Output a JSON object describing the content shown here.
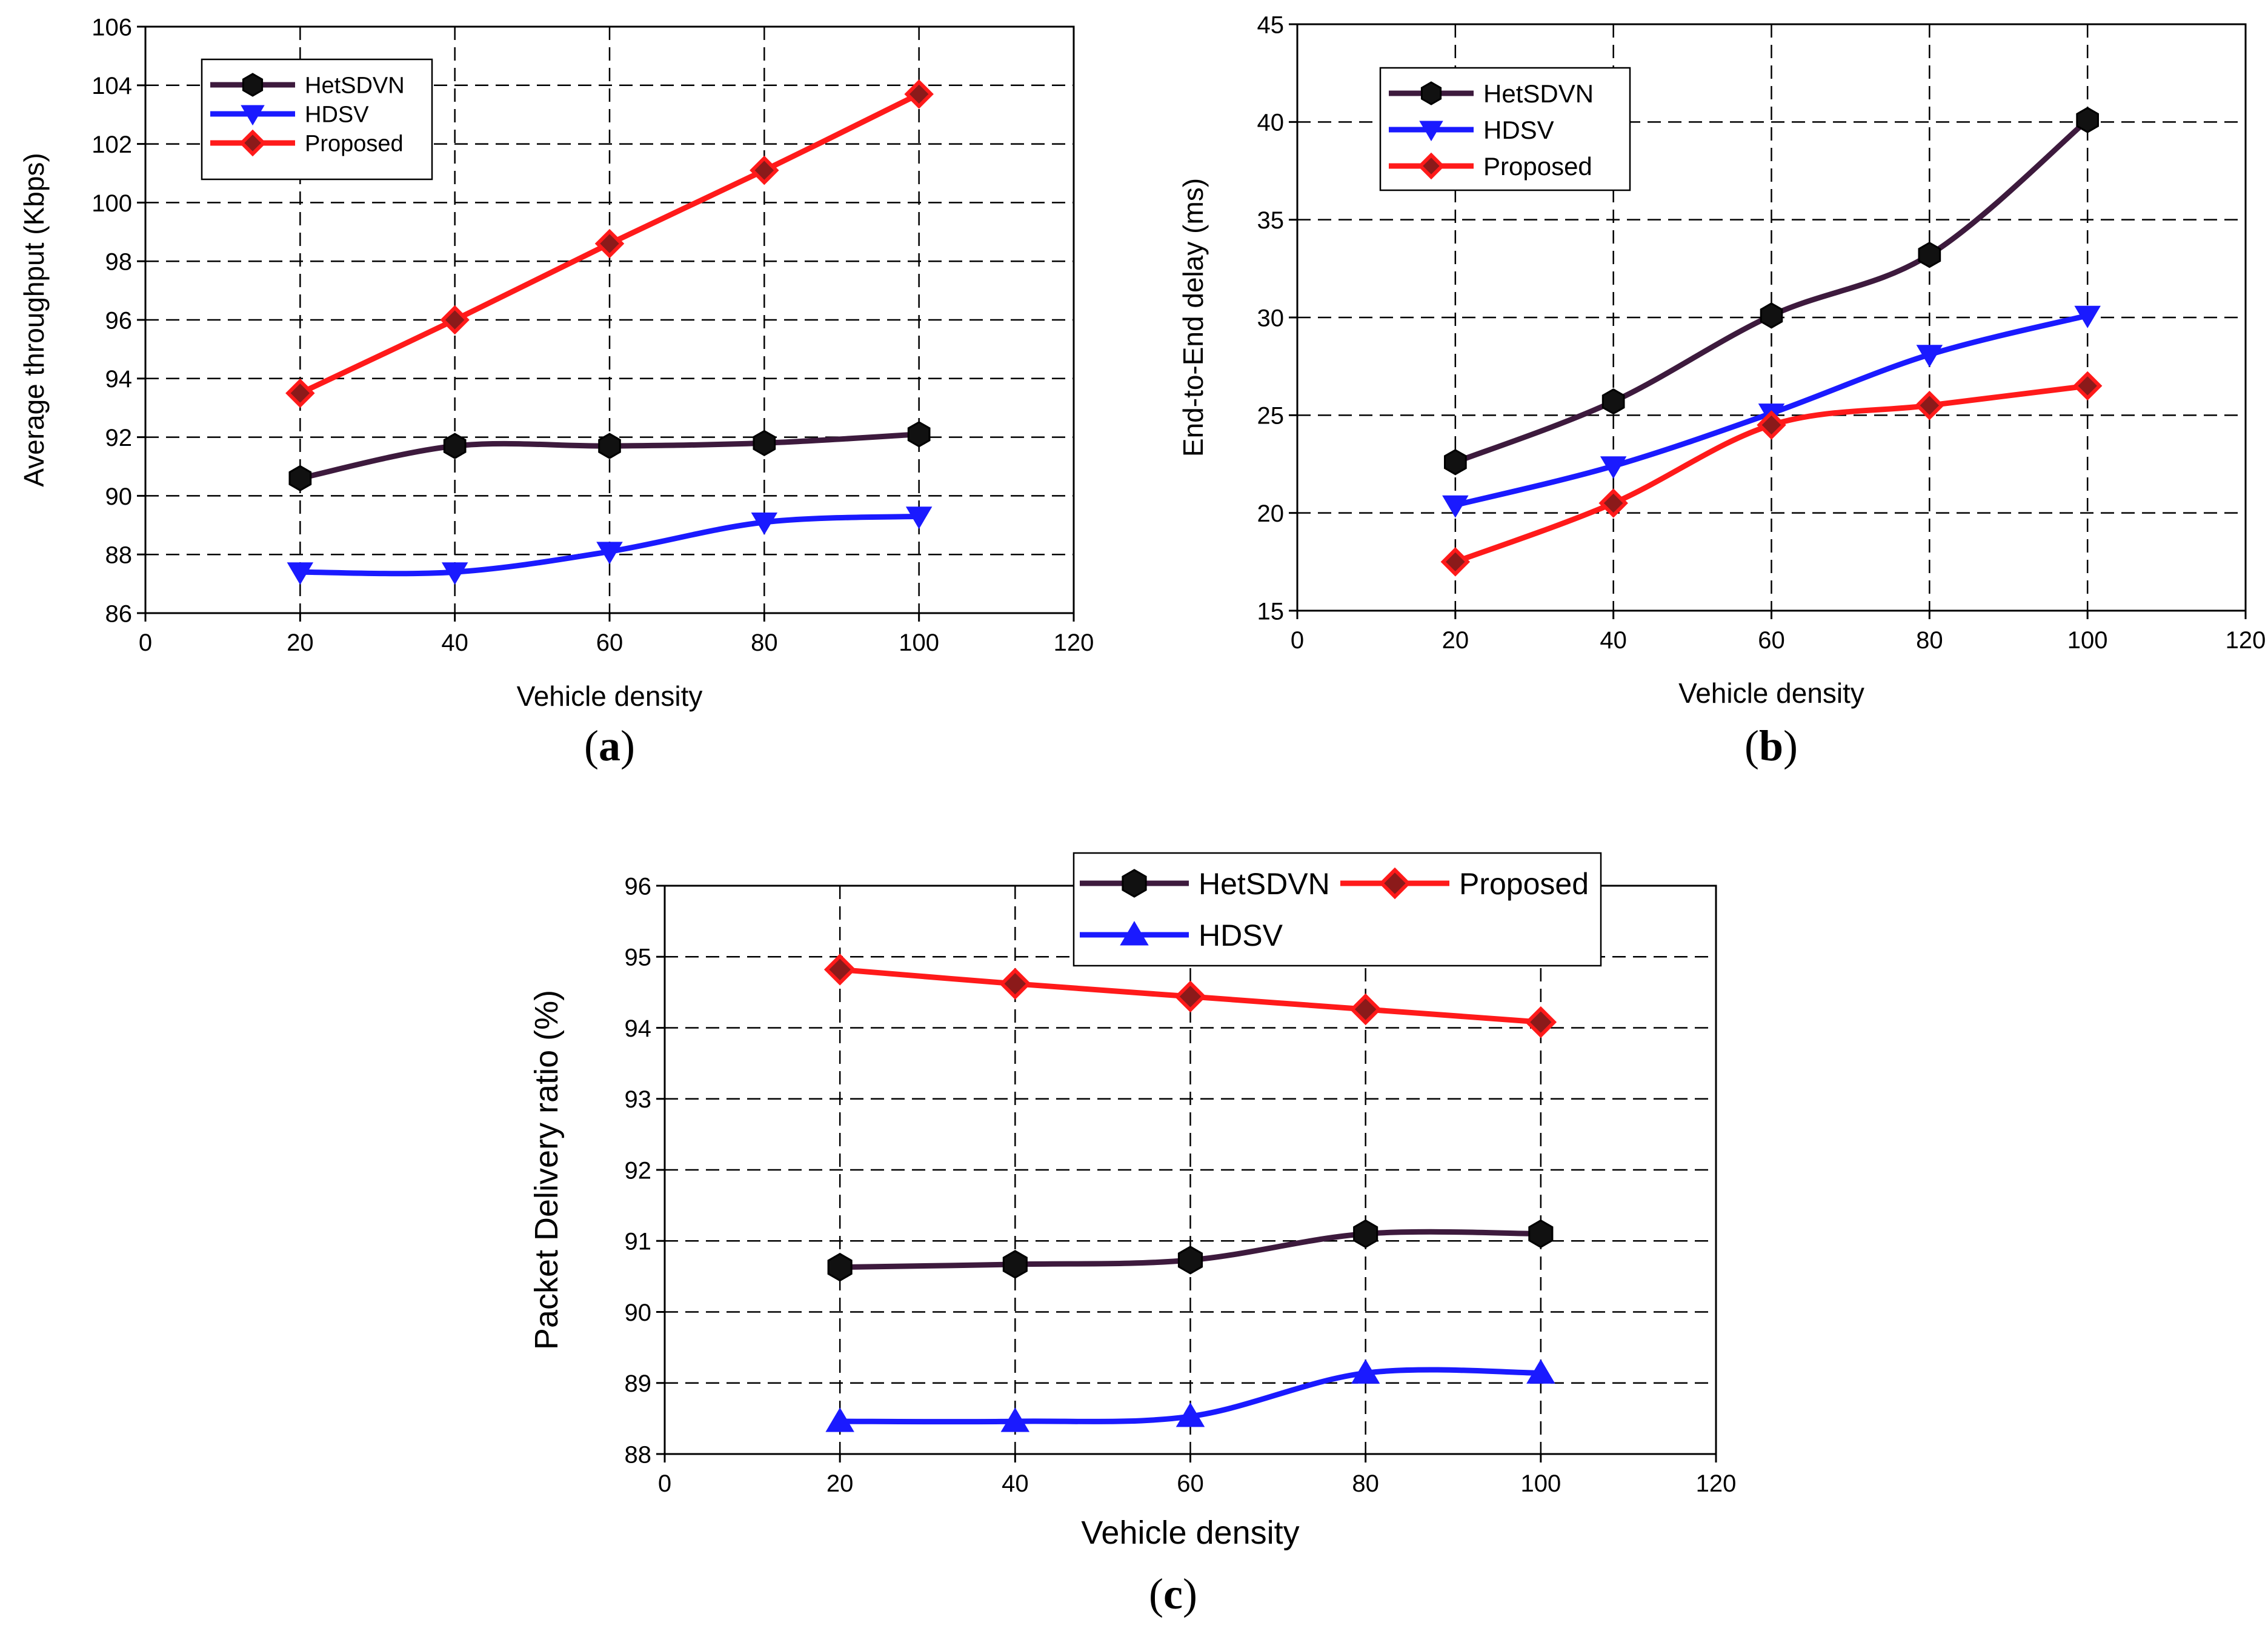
{
  "colors": {
    "HetSDVN": "#3d1a3d",
    "HDSV": "#1a1aff",
    "Proposed": "#ff1a1a",
    "marker_fill_hetsdvn": "#111111",
    "marker_fill_proposed": "#8b1a1a",
    "grid": "#000000"
  },
  "chart_data": [
    {
      "id": "a",
      "type": "line",
      "caption": "(a)",
      "caption_letter": "a",
      "xlabel": "Vehicle density",
      "ylabel": "Average throughput (Kbps)",
      "xlim": [
        0,
        120
      ],
      "ylim": [
        86,
        106
      ],
      "xticks": [
        0,
        20,
        40,
        60,
        80,
        100,
        120
      ],
      "yticks": [
        86,
        88,
        90,
        92,
        94,
        96,
        98,
        100,
        102,
        104,
        106
      ],
      "grid": true,
      "legend_position": "top-left",
      "legend_layout": "column",
      "x": [
        20,
        40,
        60,
        80,
        100
      ],
      "series": [
        {
          "name": "HetSDVN",
          "marker": "hexagon",
          "values": [
            90.6,
            91.7,
            91.7,
            91.8,
            92.1
          ]
        },
        {
          "name": "HDSV",
          "marker": "triangle-down",
          "values": [
            87.4,
            87.4,
            88.1,
            89.1,
            89.3
          ]
        },
        {
          "name": "Proposed",
          "marker": "diamond",
          "values": [
            93.5,
            96.0,
            98.6,
            101.1,
            103.7
          ]
        }
      ]
    },
    {
      "id": "b",
      "type": "line",
      "caption": "(b)",
      "caption_letter": "b",
      "xlabel": "Vehicle density",
      "ylabel": "End-to-End delay (ms)",
      "xlim": [
        0,
        120
      ],
      "ylim": [
        15,
        45
      ],
      "xticks": [
        0,
        20,
        40,
        60,
        80,
        100,
        120
      ],
      "yticks": [
        15,
        20,
        25,
        30,
        35,
        40,
        45
      ],
      "grid": true,
      "legend_position": "top-left",
      "legend_layout": "column",
      "x": [
        20,
        40,
        60,
        80,
        100
      ],
      "series": [
        {
          "name": "HetSDVN",
          "marker": "hexagon",
          "values": [
            22.6,
            25.7,
            30.1,
            33.2,
            40.1
          ]
        },
        {
          "name": "HDSV",
          "marker": "triangle-down",
          "values": [
            20.4,
            22.4,
            25.1,
            28.1,
            30.1
          ]
        },
        {
          "name": "Proposed",
          "marker": "diamond",
          "values": [
            17.5,
            20.5,
            24.5,
            25.5,
            26.5
          ]
        }
      ]
    },
    {
      "id": "c",
      "type": "line",
      "caption": "(c)",
      "caption_letter": "c",
      "xlabel": "Vehicle density",
      "ylabel": "Packet Delivery ratio (%)",
      "xlim": [
        0,
        120
      ],
      "ylim": [
        88,
        96
      ],
      "xticks": [
        0,
        20,
        40,
        60,
        80,
        100,
        120
      ],
      "yticks": [
        88,
        89,
        90,
        91,
        92,
        93,
        94,
        95,
        96
      ],
      "grid": true,
      "legend_position": "top-right",
      "legend_layout": "grid",
      "x": [
        20,
        40,
        60,
        80,
        100
      ],
      "series": [
        {
          "name": "HetSDVN",
          "marker": "hexagon",
          "values": [
            90.63,
            90.67,
            90.73,
            91.1,
            91.1
          ]
        },
        {
          "name": "Proposed",
          "marker": "diamond",
          "values": [
            94.82,
            94.62,
            94.44,
            94.26,
            94.08
          ]
        },
        {
          "name": "HDSV",
          "marker": "triangle-up",
          "values": [
            88.46,
            88.46,
            88.53,
            89.14,
            89.14
          ]
        }
      ]
    }
  ]
}
